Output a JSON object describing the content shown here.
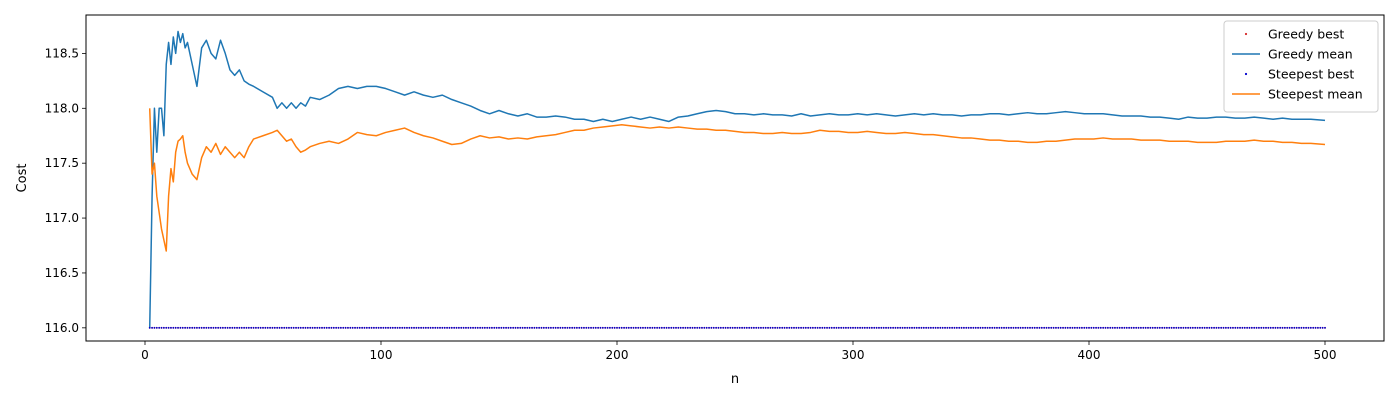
{
  "chart_data": {
    "type": "line",
    "title": "",
    "xlabel": "n",
    "ylabel": "Cost",
    "xlim": [
      -25,
      525
    ],
    "ylim": [
      115.88,
      118.85
    ],
    "x_ticks": [
      0,
      100,
      200,
      300,
      400,
      500
    ],
    "y_ticks": [
      116.0,
      116.5,
      117.0,
      117.5,
      118.0,
      118.5
    ],
    "x_tick_labels": [
      "0",
      "100",
      "200",
      "300",
      "400",
      "500"
    ],
    "y_tick_labels": [
      "116.0",
      "116.5",
      "117.0",
      "117.5",
      "118.0",
      "118.5"
    ],
    "grid": false,
    "legend_position": "top-right",
    "series": [
      {
        "name": "Greedy best",
        "style": "points",
        "color": "#d62728",
        "x_range": [
          2,
          500
        ],
        "constant_value": 116.0
      },
      {
        "name": "Greedy mean",
        "style": "line",
        "color": "#1f77b4",
        "points": [
          [
            2,
            116.0
          ],
          [
            3,
            117.2
          ],
          [
            4,
            118.0
          ],
          [
            5,
            117.6
          ],
          [
            6,
            118.0
          ],
          [
            7,
            118.0
          ],
          [
            8,
            117.75
          ],
          [
            9,
            118.4
          ],
          [
            10,
            118.6
          ],
          [
            11,
            118.4
          ],
          [
            12,
            118.65
          ],
          [
            13,
            118.5
          ],
          [
            14,
            118.7
          ],
          [
            15,
            118.6
          ],
          [
            16,
            118.68
          ],
          [
            17,
            118.55
          ],
          [
            18,
            118.6
          ],
          [
            20,
            118.4
          ],
          [
            22,
            118.2
          ],
          [
            24,
            118.55
          ],
          [
            26,
            118.62
          ],
          [
            28,
            118.5
          ],
          [
            30,
            118.45
          ],
          [
            32,
            118.62
          ],
          [
            34,
            118.5
          ],
          [
            36,
            118.35
          ],
          [
            38,
            118.3
          ],
          [
            40,
            118.35
          ],
          [
            42,
            118.25
          ],
          [
            44,
            118.22
          ],
          [
            46,
            118.2
          ],
          [
            50,
            118.15
          ],
          [
            54,
            118.1
          ],
          [
            56,
            118.0
          ],
          [
            58,
            118.05
          ],
          [
            60,
            118.0
          ],
          [
            62,
            118.05
          ],
          [
            64,
            118.0
          ],
          [
            66,
            118.05
          ],
          [
            68,
            118.02
          ],
          [
            70,
            118.1
          ],
          [
            74,
            118.08
          ],
          [
            78,
            118.12
          ],
          [
            82,
            118.18
          ],
          [
            86,
            118.2
          ],
          [
            90,
            118.18
          ],
          [
            94,
            118.2
          ],
          [
            98,
            118.2
          ],
          [
            102,
            118.18
          ],
          [
            106,
            118.15
          ],
          [
            110,
            118.12
          ],
          [
            114,
            118.15
          ],
          [
            118,
            118.12
          ],
          [
            122,
            118.1
          ],
          [
            126,
            118.12
          ],
          [
            130,
            118.08
          ],
          [
            134,
            118.05
          ],
          [
            138,
            118.02
          ],
          [
            142,
            117.98
          ],
          [
            146,
            117.95
          ],
          [
            150,
            117.98
          ],
          [
            154,
            117.95
          ],
          [
            158,
            117.93
          ],
          [
            162,
            117.95
          ],
          [
            166,
            117.92
          ],
          [
            170,
            117.92
          ],
          [
            174,
            117.93
          ],
          [
            178,
            117.92
          ],
          [
            182,
            117.9
          ],
          [
            186,
            117.9
          ],
          [
            190,
            117.88
          ],
          [
            194,
            117.9
          ],
          [
            198,
            117.88
          ],
          [
            202,
            117.9
          ],
          [
            206,
            117.92
          ],
          [
            210,
            117.9
          ],
          [
            214,
            117.92
          ],
          [
            218,
            117.9
          ],
          [
            222,
            117.88
          ],
          [
            226,
            117.92
          ],
          [
            230,
            117.93
          ],
          [
            234,
            117.95
          ],
          [
            238,
            117.97
          ],
          [
            242,
            117.98
          ],
          [
            246,
            117.97
          ],
          [
            250,
            117.95
          ],
          [
            254,
            117.95
          ],
          [
            258,
            117.94
          ],
          [
            262,
            117.95
          ],
          [
            266,
            117.94
          ],
          [
            270,
            117.94
          ],
          [
            274,
            117.93
          ],
          [
            278,
            117.95
          ],
          [
            282,
            117.93
          ],
          [
            286,
            117.94
          ],
          [
            290,
            117.95
          ],
          [
            294,
            117.94
          ],
          [
            298,
            117.94
          ],
          [
            302,
            117.95
          ],
          [
            306,
            117.94
          ],
          [
            310,
            117.95
          ],
          [
            314,
            117.94
          ],
          [
            318,
            117.93
          ],
          [
            322,
            117.94
          ],
          [
            326,
            117.95
          ],
          [
            330,
            117.94
          ],
          [
            334,
            117.95
          ],
          [
            338,
            117.94
          ],
          [
            342,
            117.94
          ],
          [
            346,
            117.93
          ],
          [
            350,
            117.94
          ],
          [
            354,
            117.94
          ],
          [
            358,
            117.95
          ],
          [
            362,
            117.95
          ],
          [
            366,
            117.94
          ],
          [
            370,
            117.95
          ],
          [
            374,
            117.96
          ],
          [
            378,
            117.95
          ],
          [
            382,
            117.95
          ],
          [
            386,
            117.96
          ],
          [
            390,
            117.97
          ],
          [
            394,
            117.96
          ],
          [
            398,
            117.95
          ],
          [
            402,
            117.95
          ],
          [
            406,
            117.95
          ],
          [
            410,
            117.94
          ],
          [
            414,
            117.93
          ],
          [
            418,
            117.93
          ],
          [
            422,
            117.93
          ],
          [
            426,
            117.92
          ],
          [
            430,
            117.92
          ],
          [
            434,
            117.91
          ],
          [
            438,
            117.9
          ],
          [
            442,
            117.92
          ],
          [
            446,
            117.91
          ],
          [
            450,
            117.91
          ],
          [
            454,
            117.92
          ],
          [
            458,
            117.92
          ],
          [
            462,
            117.91
          ],
          [
            466,
            117.91
          ],
          [
            470,
            117.92
          ],
          [
            474,
            117.91
          ],
          [
            478,
            117.9
          ],
          [
            482,
            117.91
          ],
          [
            486,
            117.9
          ],
          [
            490,
            117.9
          ],
          [
            494,
            117.9
          ],
          [
            500,
            117.89
          ]
        ]
      },
      {
        "name": "Steepest best",
        "style": "points",
        "color": "#0000cd",
        "x_range": [
          2,
          500
        ],
        "constant_value": 116.0
      },
      {
        "name": "Steepest mean",
        "style": "line",
        "color": "#ff7f0e",
        "points": [
          [
            2,
            118.0
          ],
          [
            3,
            117.4
          ],
          [
            4,
            117.5
          ],
          [
            5,
            117.2
          ],
          [
            6,
            117.05
          ],
          [
            7,
            116.9
          ],
          [
            8,
            116.8
          ],
          [
            9,
            116.7
          ],
          [
            10,
            117.2
          ],
          [
            11,
            117.45
          ],
          [
            12,
            117.33
          ],
          [
            13,
            117.6
          ],
          [
            14,
            117.7
          ],
          [
            15,
            117.72
          ],
          [
            16,
            117.75
          ],
          [
            17,
            117.6
          ],
          [
            18,
            117.5
          ],
          [
            20,
            117.4
          ],
          [
            22,
            117.35
          ],
          [
            24,
            117.55
          ],
          [
            26,
            117.65
          ],
          [
            28,
            117.6
          ],
          [
            30,
            117.68
          ],
          [
            32,
            117.58
          ],
          [
            34,
            117.65
          ],
          [
            36,
            117.6
          ],
          [
            38,
            117.55
          ],
          [
            40,
            117.6
          ],
          [
            42,
            117.55
          ],
          [
            44,
            117.65
          ],
          [
            46,
            117.72
          ],
          [
            50,
            117.75
          ],
          [
            54,
            117.78
          ],
          [
            56,
            117.8
          ],
          [
            58,
            117.75
          ],
          [
            60,
            117.7
          ],
          [
            62,
            117.72
          ],
          [
            64,
            117.65
          ],
          [
            66,
            117.6
          ],
          [
            68,
            117.62
          ],
          [
            70,
            117.65
          ],
          [
            74,
            117.68
          ],
          [
            78,
            117.7
          ],
          [
            82,
            117.68
          ],
          [
            86,
            117.72
          ],
          [
            90,
            117.78
          ],
          [
            94,
            117.76
          ],
          [
            98,
            117.75
          ],
          [
            102,
            117.78
          ],
          [
            106,
            117.8
          ],
          [
            110,
            117.82
          ],
          [
            114,
            117.78
          ],
          [
            118,
            117.75
          ],
          [
            122,
            117.73
          ],
          [
            126,
            117.7
          ],
          [
            130,
            117.67
          ],
          [
            134,
            117.68
          ],
          [
            138,
            117.72
          ],
          [
            142,
            117.75
          ],
          [
            146,
            117.73
          ],
          [
            150,
            117.74
          ],
          [
            154,
            117.72
          ],
          [
            158,
            117.73
          ],
          [
            162,
            117.72
          ],
          [
            166,
            117.74
          ],
          [
            170,
            117.75
          ],
          [
            174,
            117.76
          ],
          [
            178,
            117.78
          ],
          [
            182,
            117.8
          ],
          [
            186,
            117.8
          ],
          [
            190,
            117.82
          ],
          [
            194,
            117.83
          ],
          [
            198,
            117.84
          ],
          [
            202,
            117.85
          ],
          [
            206,
            117.84
          ],
          [
            210,
            117.83
          ],
          [
            214,
            117.82
          ],
          [
            218,
            117.83
          ],
          [
            222,
            117.82
          ],
          [
            226,
            117.83
          ],
          [
            230,
            117.82
          ],
          [
            234,
            117.81
          ],
          [
            238,
            117.81
          ],
          [
            242,
            117.8
          ],
          [
            246,
            117.8
          ],
          [
            250,
            117.79
          ],
          [
            254,
            117.78
          ],
          [
            258,
            117.78
          ],
          [
            262,
            117.77
          ],
          [
            266,
            117.77
          ],
          [
            270,
            117.78
          ],
          [
            274,
            117.77
          ],
          [
            278,
            117.77
          ],
          [
            282,
            117.78
          ],
          [
            286,
            117.8
          ],
          [
            290,
            117.79
          ],
          [
            294,
            117.79
          ],
          [
            298,
            117.78
          ],
          [
            302,
            117.78
          ],
          [
            306,
            117.79
          ],
          [
            310,
            117.78
          ],
          [
            314,
            117.77
          ],
          [
            318,
            117.77
          ],
          [
            322,
            117.78
          ],
          [
            326,
            117.77
          ],
          [
            330,
            117.76
          ],
          [
            334,
            117.76
          ],
          [
            338,
            117.75
          ],
          [
            342,
            117.74
          ],
          [
            346,
            117.73
          ],
          [
            350,
            117.73
          ],
          [
            354,
            117.72
          ],
          [
            358,
            117.71
          ],
          [
            362,
            117.71
          ],
          [
            366,
            117.7
          ],
          [
            370,
            117.7
          ],
          [
            374,
            117.69
          ],
          [
            378,
            117.69
          ],
          [
            382,
            117.7
          ],
          [
            386,
            117.7
          ],
          [
            390,
            117.71
          ],
          [
            394,
            117.72
          ],
          [
            398,
            117.72
          ],
          [
            402,
            117.72
          ],
          [
            406,
            117.73
          ],
          [
            410,
            117.72
          ],
          [
            414,
            117.72
          ],
          [
            418,
            117.72
          ],
          [
            422,
            117.71
          ],
          [
            426,
            117.71
          ],
          [
            430,
            117.71
          ],
          [
            434,
            117.7
          ],
          [
            438,
            117.7
          ],
          [
            442,
            117.7
          ],
          [
            446,
            117.69
          ],
          [
            450,
            117.69
          ],
          [
            454,
            117.69
          ],
          [
            458,
            117.7
          ],
          [
            462,
            117.7
          ],
          [
            466,
            117.7
          ],
          [
            470,
            117.71
          ],
          [
            474,
            117.7
          ],
          [
            478,
            117.7
          ],
          [
            482,
            117.69
          ],
          [
            486,
            117.69
          ],
          [
            490,
            117.68
          ],
          [
            494,
            117.68
          ],
          [
            500,
            117.67
          ]
        ]
      }
    ]
  }
}
